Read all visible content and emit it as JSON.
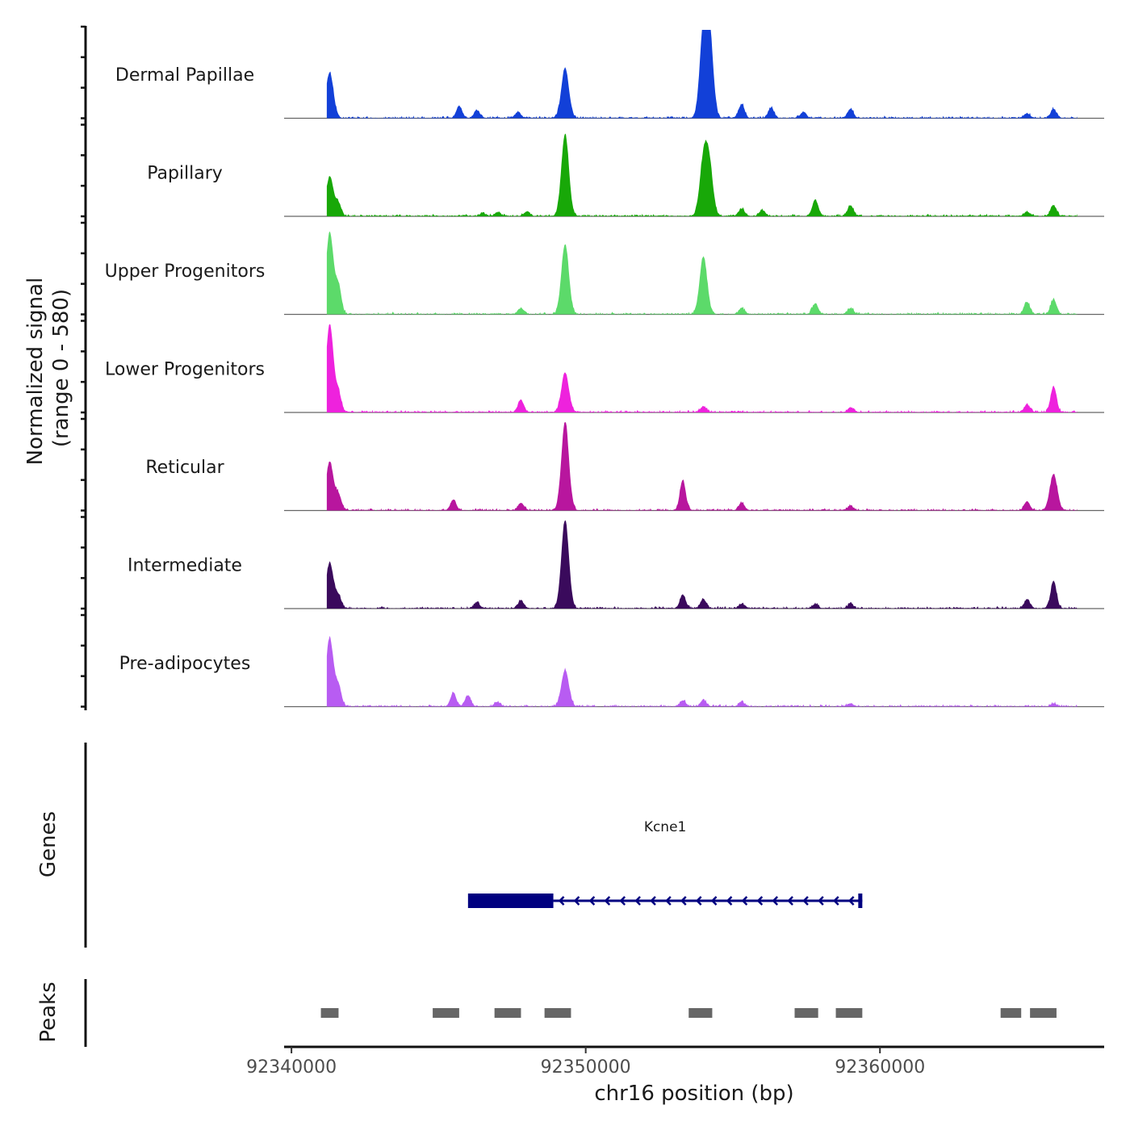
{
  "chart_data": {
    "type": "area",
    "title": "",
    "ylabel_line1": "Normalized signal",
    "ylabel_line2": "(range 0 - 580)",
    "ylim": [
      0,
      580
    ],
    "xlabel": "chr16 position (bp)",
    "xlim": [
      92339750,
      92367620
    ],
    "x_ticks": [
      92340000,
      92350000,
      92360000
    ],
    "x_tick_labels": [
      "92340000",
      "92350000",
      "92360000"
    ],
    "tracks": [
      {
        "name": "Dermal Papillae",
        "color": "#1240D8",
        "peaks": [
          [
            92341300,
            300
          ],
          [
            92345700,
            80
          ],
          [
            92346300,
            50
          ],
          [
            92347700,
            40
          ],
          [
            92349300,
            330
          ],
          [
            92354000,
            540
          ],
          [
            92354200,
            560
          ],
          [
            92355300,
            90
          ],
          [
            92356300,
            70
          ],
          [
            92357400,
            40
          ],
          [
            92359000,
            60
          ],
          [
            92365000,
            30
          ],
          [
            92365900,
            60
          ]
        ]
      },
      {
        "name": "Papillary",
        "color": "#18A808",
        "peaks": [
          [
            92341300,
            260
          ],
          [
            92341600,
            80
          ],
          [
            92346500,
            20
          ],
          [
            92347000,
            25
          ],
          [
            92348000,
            30
          ],
          [
            92349300,
            540
          ],
          [
            92354000,
            350
          ],
          [
            92354200,
            320
          ],
          [
            92355300,
            50
          ],
          [
            92356000,
            40
          ],
          [
            92357800,
            110
          ],
          [
            92359000,
            70
          ],
          [
            92365000,
            30
          ],
          [
            92365900,
            70
          ]
        ]
      },
      {
        "name": "Upper Progenitors",
        "color": "#5CDA6A",
        "peaks": [
          [
            92341300,
            540
          ],
          [
            92341600,
            180
          ],
          [
            92347800,
            40
          ],
          [
            92349300,
            460
          ],
          [
            92354000,
            380
          ],
          [
            92355300,
            40
          ],
          [
            92357800,
            70
          ],
          [
            92359000,
            40
          ],
          [
            92365000,
            80
          ],
          [
            92365900,
            100
          ]
        ]
      },
      {
        "name": "Lower Progenitors",
        "color": "#EE22DD",
        "peaks": [
          [
            92341300,
            580
          ],
          [
            92341600,
            120
          ],
          [
            92347800,
            80
          ],
          [
            92349300,
            260
          ],
          [
            92354000,
            40
          ],
          [
            92359000,
            30
          ],
          [
            92365000,
            50
          ],
          [
            92365900,
            170
          ]
        ]
      },
      {
        "name": "Reticular",
        "color": "#B8169E",
        "peaks": [
          [
            92341300,
            320
          ],
          [
            92341600,
            100
          ],
          [
            92345500,
            70
          ],
          [
            92347800,
            50
          ],
          [
            92349300,
            580
          ],
          [
            92353300,
            200
          ],
          [
            92355300,
            50
          ],
          [
            92359000,
            30
          ],
          [
            92365000,
            60
          ],
          [
            92365900,
            240
          ]
        ]
      },
      {
        "name": "Intermediate",
        "color": "#3A0A5C",
        "peaks": [
          [
            92341300,
            300
          ],
          [
            92341600,
            80
          ],
          [
            92346300,
            40
          ],
          [
            92347800,
            50
          ],
          [
            92349300,
            580
          ],
          [
            92353300,
            90
          ],
          [
            92354000,
            60
          ],
          [
            92355300,
            30
          ],
          [
            92357800,
            30
          ],
          [
            92359000,
            30
          ],
          [
            92365000,
            60
          ],
          [
            92365900,
            180
          ]
        ]
      },
      {
        "name": "Pre-adipocytes",
        "color": "#B85CF2",
        "peaks": [
          [
            92341300,
            450
          ],
          [
            92341600,
            130
          ],
          [
            92345500,
            90
          ],
          [
            92346000,
            70
          ],
          [
            92347000,
            30
          ],
          [
            92349300,
            240
          ],
          [
            92353300,
            40
          ],
          [
            92354000,
            40
          ],
          [
            92355300,
            30
          ],
          [
            92359000,
            20
          ],
          [
            92365900,
            20
          ]
        ]
      }
    ],
    "genes": [
      {
        "name": "Kcne1",
        "strand": "-",
        "start": 92346000,
        "end": 92359400,
        "utr_start": 92346000,
        "utr_end": 92348900,
        "color": "#000080"
      }
    ],
    "genes_label": "Genes",
    "peaks_label": "Peaks",
    "peak_regions": [
      [
        92341000,
        92341600
      ],
      [
        92344800,
        92345700
      ],
      [
        92346900,
        92347800
      ],
      [
        92348600,
        92349500
      ],
      [
        92353500,
        92354300
      ],
      [
        92357100,
        92357900
      ],
      [
        92358500,
        92359400
      ],
      [
        92364100,
        92364800
      ],
      [
        92365100,
        92366000
      ]
    ],
    "peak_color": "#666666"
  }
}
